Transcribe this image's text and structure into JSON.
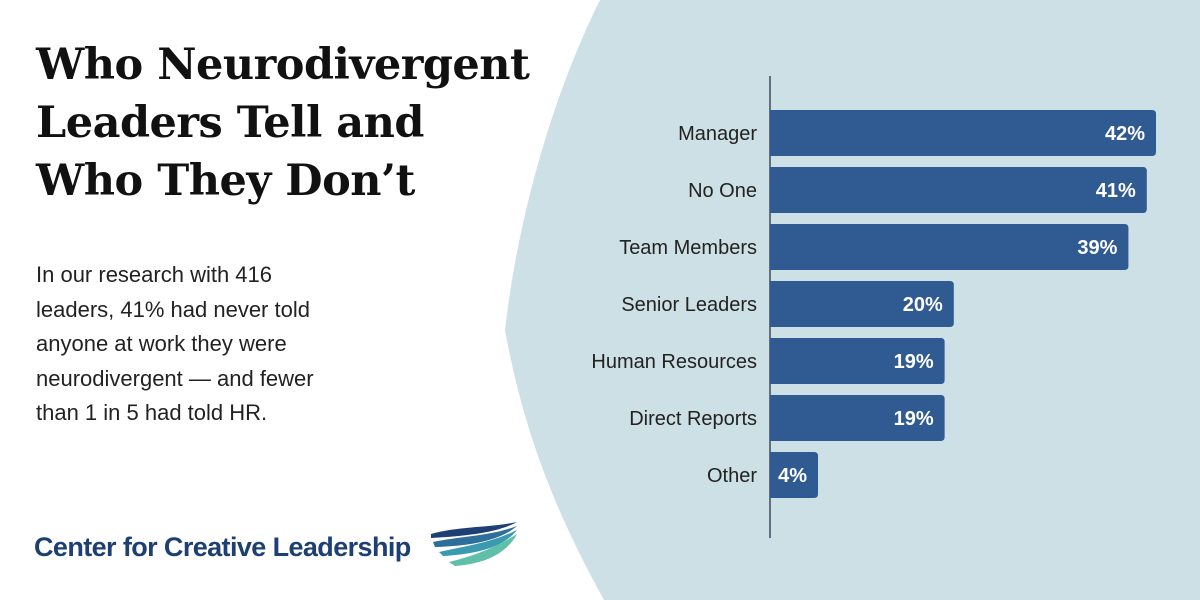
{
  "colors": {
    "background": "#ffffff",
    "panel": "#cde0e5",
    "bar": "#2f5a92",
    "axis": "#3c4a5c",
    "title": "#111111",
    "brand": "#1d3f73"
  },
  "header": {
    "title_lines": [
      "Who Neurodivergent",
      "Leaders Tell and",
      "Who They Don’t"
    ]
  },
  "summary": {
    "lines": [
      "In our research with 416",
      "leaders, 41% had never told",
      "anyone at work they were",
      "neurodivergent — and fewer",
      "than 1 in 5 had told HR."
    ]
  },
  "logo": {
    "text": "Center for Creative Leadership",
    "icon": "wave-stripes-icon"
  },
  "chart_data": {
    "type": "bar",
    "orientation": "horizontal",
    "categories": [
      "Manager",
      "No One",
      "Team Members",
      "Senior Leaders",
      "Human Resources",
      "Direct Reports",
      "Other"
    ],
    "values": [
      42,
      41,
      39,
      20,
      19,
      19,
      4
    ],
    "value_labels": [
      "42%",
      "41%",
      "39%",
      "20%",
      "19%",
      "19%",
      "4%"
    ],
    "title": "",
    "xlabel": "",
    "ylabel": "",
    "xlim": [
      0,
      42
    ],
    "grid": false,
    "legend": "none"
  }
}
